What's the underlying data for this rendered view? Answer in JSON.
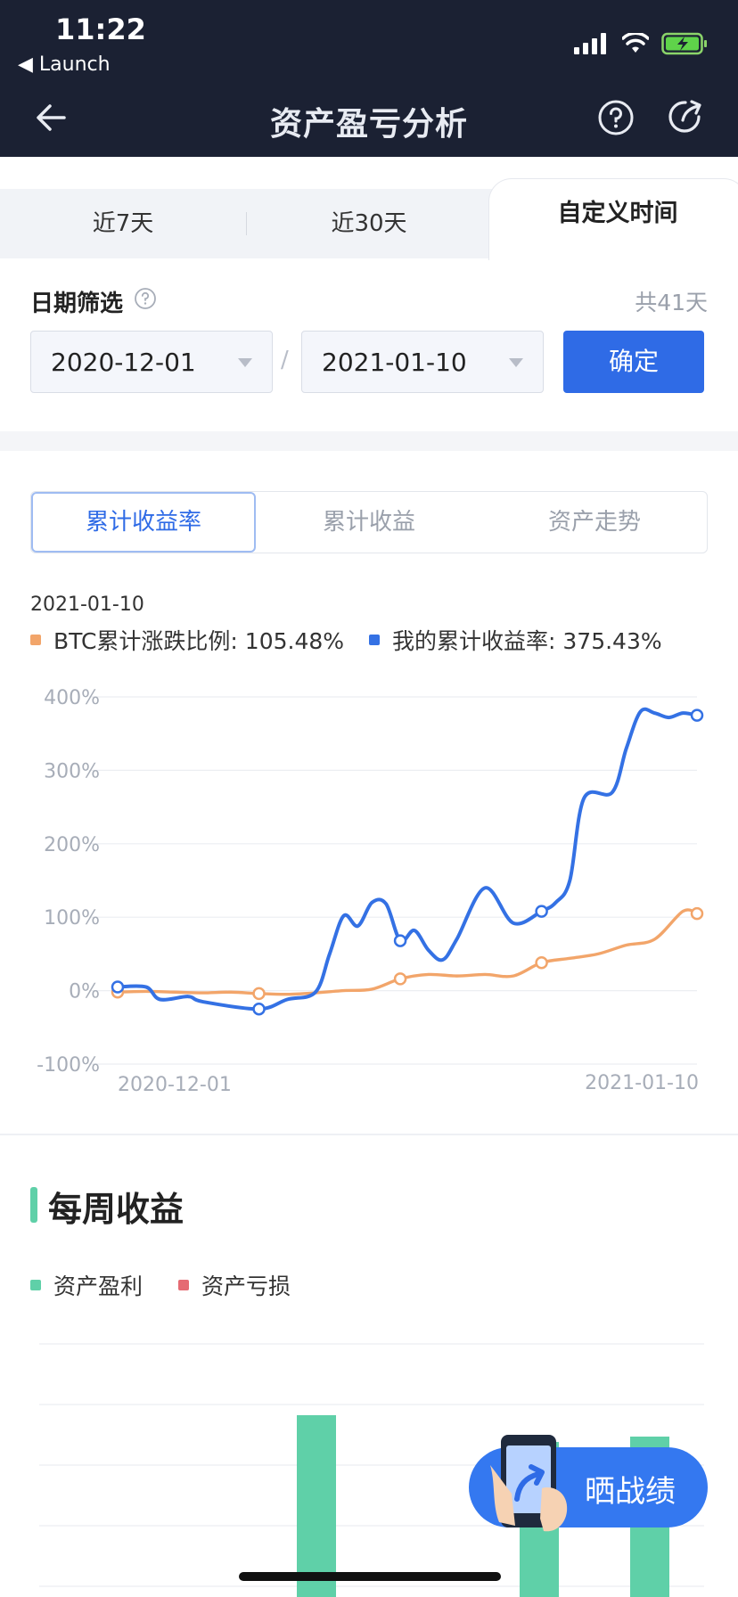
{
  "status_bar": {
    "time": "11:22",
    "back_app": "◀ Launch"
  },
  "nav": {
    "title": "资产盈亏分析"
  },
  "period_tabs": [
    {
      "label": "近7天"
    },
    {
      "label": "近30天"
    },
    {
      "label": "自定义时间",
      "active": true
    }
  ],
  "date_filter": {
    "label": "日期筛选",
    "total": "共41天",
    "start": "2020-12-01",
    "separator": "/",
    "end": "2021-01-10",
    "confirm_label": "确定"
  },
  "segments": [
    {
      "label": "累计收益率",
      "active": true
    },
    {
      "label": "累计收益"
    },
    {
      "label": "资产走势"
    }
  ],
  "chart_header": {
    "date": "2021-01-10",
    "btc_label": "BTC累计涨跌比例: 105.48%",
    "mine_label": "我的累计收益率: 375.43%"
  },
  "colors": {
    "accent": "#2f6be6",
    "btc": "#f2a56a",
    "mine": "#3471e4",
    "profit": "#5fd0a8",
    "loss": "#e56b73"
  },
  "chart_data": {
    "type": "line",
    "ylim": [
      -100,
      400
    ],
    "yticks": [
      "400%",
      "300%",
      "200%",
      "100%",
      "0%",
      "-100%"
    ],
    "xtick_labels": [
      "2020-12-01",
      "2021-01-10"
    ],
    "series": [
      {
        "name": "BTC累计涨跌比例",
        "points": [
          [
            0,
            -2
          ],
          [
            2,
            -1
          ],
          [
            4,
            -2
          ],
          [
            6,
            -3
          ],
          [
            8,
            -2
          ],
          [
            10,
            -4
          ],
          [
            12,
            -5
          ],
          [
            14,
            -3
          ],
          [
            16,
            0
          ],
          [
            18,
            2
          ],
          [
            20,
            16
          ],
          [
            22,
            22
          ],
          [
            24,
            20
          ],
          [
            26,
            22
          ],
          [
            28,
            20
          ],
          [
            30,
            38
          ],
          [
            32,
            44
          ],
          [
            34,
            50
          ],
          [
            36,
            62
          ],
          [
            38,
            70
          ],
          [
            40,
            108
          ],
          [
            41,
            105
          ]
        ]
      },
      {
        "name": "我的累计收益率",
        "points": [
          [
            0,
            5
          ],
          [
            2,
            5
          ],
          [
            3,
            -12
          ],
          [
            5,
            -8
          ],
          [
            6,
            -15
          ],
          [
            10,
            -25
          ],
          [
            12,
            -12
          ],
          [
            14,
            -2
          ],
          [
            15,
            50
          ],
          [
            16,
            102
          ],
          [
            17,
            88
          ],
          [
            18,
            120
          ],
          [
            19,
            118
          ],
          [
            20,
            68
          ],
          [
            21,
            82
          ],
          [
            22,
            55
          ],
          [
            23,
            42
          ],
          [
            24,
            70
          ],
          [
            26,
            140
          ],
          [
            28,
            92
          ],
          [
            30,
            108
          ],
          [
            31,
            120
          ],
          [
            32,
            150
          ],
          [
            33,
            262
          ],
          [
            35,
            270
          ],
          [
            36,
            330
          ],
          [
            37,
            380
          ],
          [
            38,
            378
          ],
          [
            39,
            372
          ],
          [
            40,
            378
          ],
          [
            41,
            375
          ]
        ]
      }
    ],
    "markers": {
      "btc": [
        [
          0,
          -2
        ],
        [
          10,
          -4
        ],
        [
          20,
          16
        ],
        [
          30,
          38
        ],
        [
          41,
          105
        ]
      ],
      "mine": [
        [
          0,
          5
        ],
        [
          10,
          -25
        ],
        [
          20,
          68
        ],
        [
          30,
          108
        ],
        [
          41,
          375
        ]
      ]
    }
  },
  "weekly": {
    "title": "每周收益",
    "legend": [
      {
        "label": "资产盈利",
        "color": "#5fd0a8"
      },
      {
        "label": "资产亏损",
        "color": "#e56b73"
      }
    ],
    "bars": [
      {
        "value": 3.4
      },
      {
        "value": 2.9
      },
      {
        "value": 3.0
      }
    ]
  },
  "share_button": {
    "label": "晒战绩"
  }
}
